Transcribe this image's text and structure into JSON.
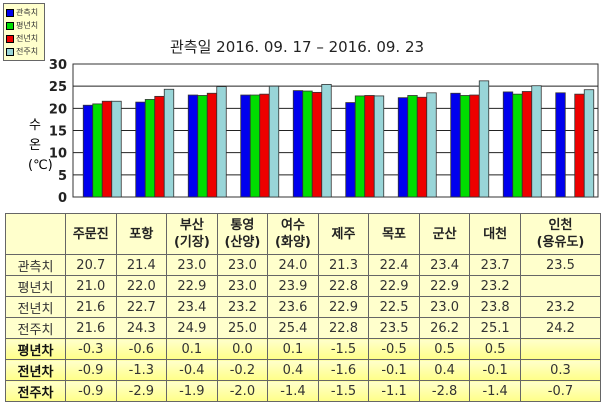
{
  "chart_data": {
    "type": "bar",
    "title": "관측일 2016. 09. 17 – 2016. 09. 23",
    "ylabel": "수온 (℃)",
    "ylim": [
      0,
      30
    ],
    "yticks": [
      0,
      5,
      10,
      15,
      20,
      25,
      30
    ],
    "grid": true,
    "legend_placement": "top-left",
    "categories": [
      "주문진",
      "포항",
      "부산(기장)",
      "통영(산양)",
      "여수(화양)",
      "제주",
      "목포",
      "군산",
      "대천",
      "인천(용유도)"
    ],
    "series": [
      {
        "name": "관측치",
        "color": "#0000ee",
        "values": [
          20.7,
          21.4,
          23.0,
          23.0,
          24.0,
          21.3,
          22.4,
          23.4,
          23.7,
          23.5
        ]
      },
      {
        "name": "평년치",
        "color": "#00dd00",
        "values": [
          21.0,
          22.0,
          22.9,
          23.0,
          23.9,
          22.8,
          22.9,
          22.9,
          23.2,
          null
        ]
      },
      {
        "name": "전년치",
        "color": "#ee0000",
        "values": [
          21.6,
          22.7,
          23.4,
          23.2,
          23.6,
          22.9,
          22.5,
          23.0,
          23.8,
          23.2
        ]
      },
      {
        "name": "전주치",
        "color": "#99d5d8",
        "values": [
          21.6,
          24.3,
          24.9,
          25.0,
          25.4,
          22.8,
          23.5,
          26.2,
          25.1,
          24.2
        ]
      }
    ]
  },
  "ylabel_lines": [
    "수",
    "온",
    "(℃)"
  ],
  "table": {
    "headers": [
      [
        "주문진"
      ],
      [
        "포항"
      ],
      [
        "부산",
        "(기장)"
      ],
      [
        "통영",
        "(산양)"
      ],
      [
        "여수",
        "(화양)"
      ],
      [
        "제주"
      ],
      [
        "목포"
      ],
      [
        "군산"
      ],
      [
        "대천"
      ],
      [
        "인천",
        "(용유도)"
      ]
    ],
    "rows": [
      {
        "label": "관측치",
        "values": [
          "20.7",
          "21.4",
          "23.0",
          "23.0",
          "24.0",
          "21.3",
          "22.4",
          "23.4",
          "23.7",
          "23.5"
        ]
      },
      {
        "label": "평년치",
        "values": [
          "21.0",
          "22.0",
          "22.9",
          "23.0",
          "23.9",
          "22.8",
          "22.9",
          "22.9",
          "23.2",
          ""
        ]
      },
      {
        "label": "전년치",
        "values": [
          "21.6",
          "22.7",
          "23.4",
          "23.2",
          "23.6",
          "22.9",
          "22.5",
          "23.0",
          "23.8",
          "23.2"
        ]
      },
      {
        "label": "전주치",
        "values": [
          "21.6",
          "24.3",
          "24.9",
          "25.0",
          "25.4",
          "22.8",
          "23.5",
          "26.2",
          "25.1",
          "24.2"
        ]
      },
      {
        "label": "평년차",
        "diff": true,
        "values": [
          "-0.3",
          "-0.6",
          "0.1",
          "0.0",
          "0.1",
          "-1.5",
          "-0.5",
          "0.5",
          "0.5",
          ""
        ]
      },
      {
        "label": "전년차",
        "diff": true,
        "values": [
          "-0.9",
          "-1.3",
          "-0.4",
          "-0.2",
          "0.4",
          "-1.6",
          "-0.1",
          "0.4",
          "-0.1",
          "0.3"
        ]
      },
      {
        "label": "전주차",
        "diff": true,
        "values": [
          "-0.9",
          "-2.9",
          "-1.9",
          "-2.0",
          "-1.4",
          "-1.5",
          "-1.1",
          "-2.8",
          "-1.4",
          "-0.7"
        ]
      }
    ]
  }
}
